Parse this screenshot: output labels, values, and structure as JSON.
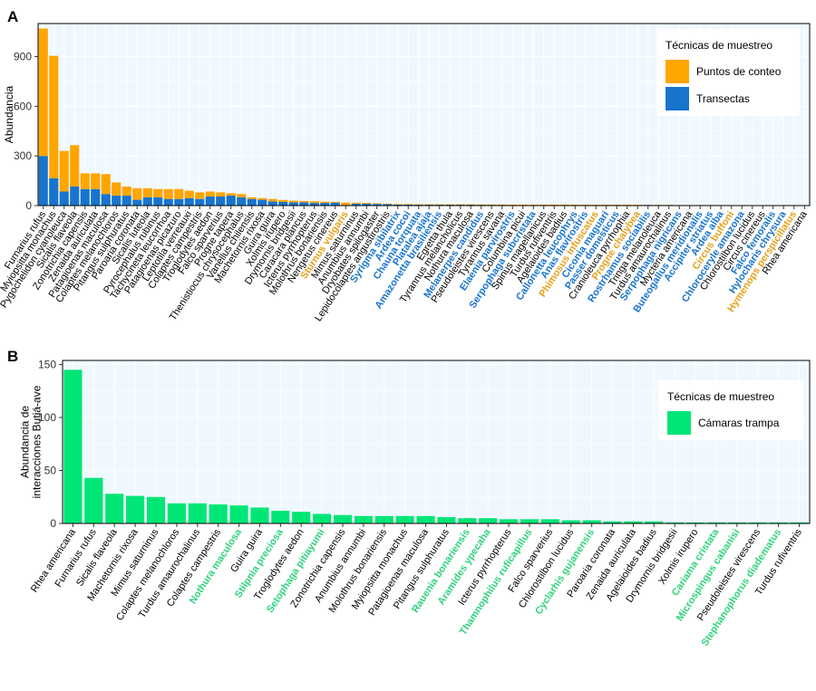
{
  "chart_data": [
    {
      "type": "bar",
      "panel_label": "A",
      "ylabel": "Abundancia",
      "yticks": [
        0,
        300,
        600,
        900
      ],
      "ylim": [
        0,
        1100
      ],
      "grid": true,
      "stacked": true,
      "legend": {
        "title": "Técnicas de muestreo",
        "placement": "top-right",
        "entries": [
          "Puntos de conteo",
          "Transectas"
        ]
      },
      "series_colors": {
        "Puntos de conteo": "#FFA500",
        "Transectas": "#1874CD"
      },
      "label_colors": {
        "default": "#000000",
        "Transectas": "#1874CD",
        "Puntos de conteo": "#E8A01A"
      },
      "categories": [
        "Furnarius rufus",
        "Myiopsitta monachus",
        "Pygochelidon cyanoleuca",
        "Sicalis flaveola",
        "Zonotrichia capensis",
        "Zenaida auriculata",
        "Patagioenas maculosa",
        "Colaptes melanochloros",
        "Pitangus sulphuratus",
        "Paroaria coronata",
        "Sicalis luteola",
        "Pyrocephalus rubinus",
        "Tachycineta leucorrhoa",
        "Patagioenas picazuro",
        "Leptotila verreauxi",
        "Colaptes campestris",
        "Troglodytes aedon",
        "Falco sparverius",
        "Progne tapera",
        "Thenistiocus chrysocephalus",
        "Vanellus chilensis",
        "Machetornis rixosa",
        "Guira guira",
        "Xolmis irupero",
        "Drymornis bridgesii",
        "Caracara plancus",
        "Icterus pyrrhopterus",
        "Molothrus bonariensis",
        "Nengetus cinereus",
        "Sturnus vulgaris",
        "Mimus saturninus",
        "Anumbius annumbi",
        "Dryobates spilogaster",
        "Lepidocolaptes angustirostris",
        "Syrigma sibilatrix",
        "Ardea cocoi",
        "Chauna torquata",
        "Platalea ajaja",
        "Amazonetta brasiliensis",
        "Egretta thula",
        "Tyrannus melancholicus",
        "Nothura maculosa",
        "Melanerpes candidus",
        "Pseudoleistes virescens",
        "Tyrannus savana",
        "Elaenia parvirostris",
        "Columbina picui",
        "Serpophaga subcristata",
        "Spinus magellanicus",
        "Turdus rufiventris",
        "Agelaioides badius",
        "Callonetta leucophrys",
        "Anas flavirostris",
        "Phimosus infuscatus",
        "Ciconia maguari",
        "Passer domesticus",
        "Cranioleuca pyrrhophia",
        "Progne chalybea",
        "Rostrhamus sociabilis",
        "Tringa melanoleuca",
        "Turdus amaurochalinus",
        "Serpophaga nigricans",
        "Mycteria americana",
        "Buteogallus meridionalis",
        "Accipiter striatus",
        "Ardea alba",
        "Circus buffoni",
        "Chloroceryle amazona",
        "Chlorostilbon lucidus",
        "Circus cinereus",
        "Falco femoralis",
        "Hylocharis chrysura",
        "Hymenops perspicillatus",
        "Rhea americana"
      ],
      "label_groups": {
        "Transectas": [
          "Syrigma sibilatrix",
          "Ardea cocoi",
          "Chauna torquata",
          "Platalea ajaja",
          "Amazonetta brasiliensis",
          "Melanerpes candidus",
          "Elaenia parvirostris",
          "Callonetta leucophrys",
          "Anas flavirostris",
          "Ciconia maguari",
          "Passer domesticus",
          "Rostrhamus sociabilis",
          "Serpophaga subcristata",
          "Serpophaga nigricans",
          "Buteogallus meridionalis",
          "Accipiter striatus",
          "Ardea alba",
          "Chloroceryle amazona",
          "Falco femoralis",
          "Hylocharis chrysura"
        ],
        "Puntos de conteo": [
          "Sturnus vulgaris",
          "Phimosus infuscatus",
          "Progne chalybea",
          "Circus buffoni",
          "Hymenops perspicillatus"
        ]
      },
      "series": [
        {
          "name": "Puntos de conteo",
          "values": [
            770,
            740,
            245,
            250,
            95,
            95,
            120,
            80,
            55,
            70,
            55,
            50,
            60,
            60,
            45,
            40,
            30,
            25,
            15,
            20,
            10,
            10,
            15,
            12,
            10,
            8,
            10,
            8,
            5,
            18,
            6,
            5,
            4,
            3,
            1,
            1,
            1,
            1,
            1,
            2,
            2,
            2,
            1,
            2,
            2,
            1,
            2,
            1,
            2,
            2,
            2,
            1,
            1,
            3,
            1,
            1,
            2,
            3,
            0,
            1,
            1,
            0,
            1,
            0,
            0,
            0,
            3,
            0,
            1,
            1,
            0,
            0,
            3,
            1
          ]
        },
        {
          "name": "Transectas",
          "values": [
            300,
            165,
            85,
            115,
            100,
            100,
            70,
            60,
            60,
            35,
            50,
            50,
            40,
            40,
            45,
            40,
            55,
            55,
            60,
            50,
            40,
            35,
            25,
            22,
            20,
            20,
            16,
            16,
            18,
            0,
            12,
            12,
            10,
            9,
            8,
            8,
            7,
            7,
            7,
            6,
            6,
            6,
            6,
            5,
            5,
            5,
            4,
            4,
            4,
            4,
            4,
            4,
            4,
            2,
            4,
            4,
            3,
            2,
            4,
            3,
            3,
            3,
            2,
            3,
            3,
            3,
            0,
            2,
            1,
            1,
            2,
            2,
            0,
            0
          ]
        }
      ]
    },
    {
      "type": "bar",
      "panel_label": "B",
      "ylabel": "Abundancia de interacciones Butiá-ave",
      "ylabel_lines": [
        "Abundancia de",
        "interacciones Butiá-ave"
      ],
      "yticks": [
        0,
        50,
        100,
        150
      ],
      "ylim": [
        0,
        150
      ],
      "grid": true,
      "legend": {
        "title": "Técnicas de muestreo",
        "placement": "top-right",
        "entries": [
          "Cámaras trampa"
        ]
      },
      "series_colors": {
        "Cámaras trampa": "#00E676"
      },
      "label_colors": {
        "default": "#000000",
        "Cámaras trampa": "#2ED37A"
      },
      "categories": [
        "Rhea americana",
        "Furnarius rufus",
        "Sicalis flaveola",
        "Machetornis rixosa",
        "Mimus saturninus",
        "Colaptes melanochloros",
        "Turdus amaurochalinus",
        "Colaptes campestris",
        "Nothura maculosa",
        "Guira guira",
        "Stilpnia preciosa",
        "Troglodytes aedon",
        "Setophaga pitiayumi",
        "Zonotrichia capensis",
        "Anumbius annumbi",
        "Molothrus bonariensis",
        "Myiopsitta monachus",
        "Patagioenas maculosa",
        "Pitangus sulphuratus",
        "Rauenia bonariensis",
        "Aramides ypecaha",
        "Icterus pyrrhopterus",
        "Thamnophilus ruficapillus",
        "Falco sparverius",
        "Chlorostilbon lucidus",
        "Cyclarhis gujanensis",
        "Paroaria coronata",
        "Zenaida auriculata",
        "Agelaioides badius",
        "Drymornis bridgesii",
        "Xolmis irupero",
        "Cariama cristata",
        "Microspingus cabanisi",
        "Pseudoleistes virescens",
        "Stephanophorus diadematus",
        "Turdus rufiventris"
      ],
      "label_groups": {
        "Cámaras trampa": [
          "Nothura maculosa",
          "Stilpnia preciosa",
          "Setophaga pitiayumi",
          "Rauenia bonariensis",
          "Aramides ypecaha",
          "Thamnophilus ruficapillus",
          "Cyclarhis gujanensis",
          "Cariama cristata",
          "Microspingus cabanisi",
          "Stephanophorus diadematus"
        ]
      },
      "series": [
        {
          "name": "Cámaras trampa",
          "values": [
            145,
            43,
            28,
            26,
            25,
            19,
            19,
            18,
            17,
            15,
            12,
            11,
            9,
            8,
            7,
            7,
            7,
            7,
            6,
            5,
            5,
            4,
            4,
            4,
            3,
            3,
            2,
            2,
            2,
            1,
            1,
            1,
            1,
            1,
            1,
            1
          ]
        }
      ]
    }
  ]
}
